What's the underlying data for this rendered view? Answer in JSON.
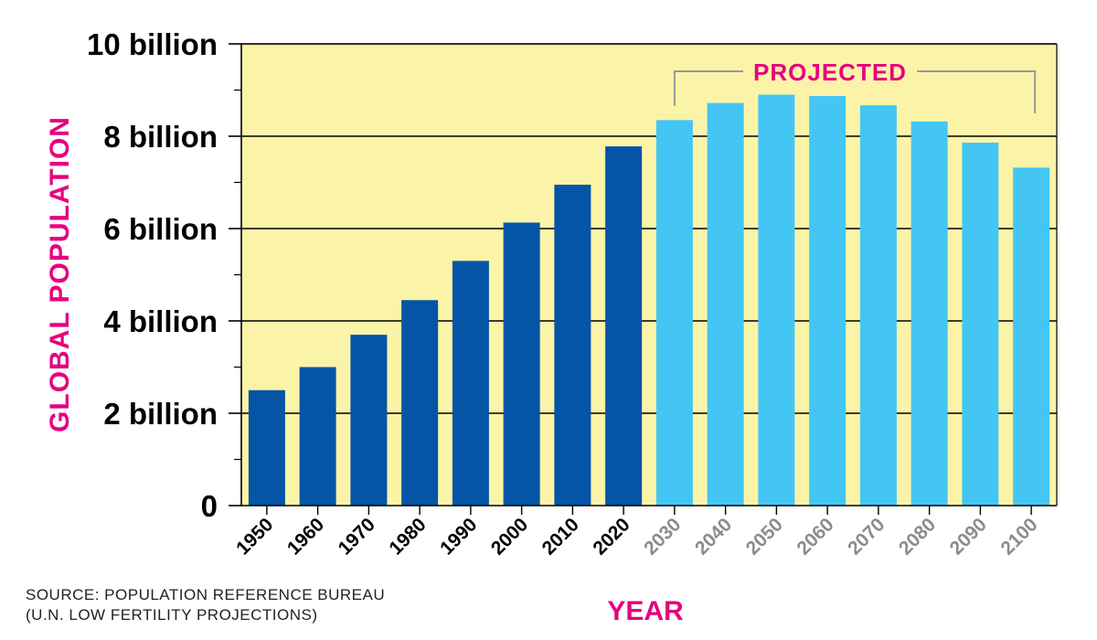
{
  "colors": {
    "plot_bg": "#fbf4a8",
    "historical": "#0455a6",
    "projected": "#43c6f4",
    "accent": "#e6007e",
    "projected_tick": "#8c8c8c"
  },
  "chart_data": {
    "type": "bar",
    "ylabel": "GLOBAL POPULATION",
    "xlabel": "YEAR",
    "ylim": [
      0,
      10
    ],
    "yticks": [
      {
        "value": 0,
        "label": "0"
      },
      {
        "value": 2,
        "label": "2 billion"
      },
      {
        "value": 4,
        "label": "4 billion"
      },
      {
        "value": 6,
        "label": "6 billion"
      },
      {
        "value": 8,
        "label": "8 billion"
      },
      {
        "value": 10,
        "label": "10 billion"
      }
    ],
    "grid": true,
    "annotation": "PROJECTED",
    "categories": [
      "1950",
      "1960",
      "1970",
      "1980",
      "1990",
      "2000",
      "2010",
      "2020",
      "2030",
      "2040",
      "2050",
      "2060",
      "2070",
      "2080",
      "2090",
      "2100"
    ],
    "values": [
      2.5,
      3.0,
      3.7,
      4.45,
      5.3,
      6.13,
      6.95,
      7.78,
      8.35,
      8.72,
      8.9,
      8.87,
      8.67,
      8.32,
      7.86,
      7.32
    ],
    "projected": [
      false,
      false,
      false,
      false,
      false,
      false,
      false,
      false,
      true,
      true,
      true,
      true,
      true,
      true,
      true,
      true
    ]
  },
  "source": {
    "line1": "SOURCE: POPULATION REFERENCE BUREAU",
    "line2": "(U.N. LOW FERTILITY PROJECTIONS)"
  }
}
